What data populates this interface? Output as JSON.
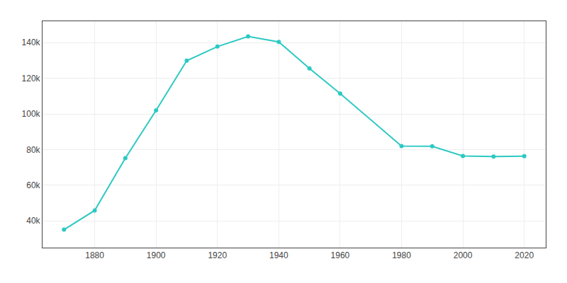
{
  "chart_data": {
    "type": "line",
    "x": [
      1870,
      1880,
      1890,
      1900,
      1910,
      1920,
      1930,
      1940,
      1950,
      1960,
      1980,
      1990,
      2000,
      2010,
      2020
    ],
    "values": [
      35092,
      45850,
      75215,
      102026,
      129867,
      137783,
      143433,
      140404,
      125536,
      111443,
      81993,
      81805,
      76415,
      76089,
      76328
    ],
    "color": "#2dc9c3",
    "marker": "circle",
    "xlim": [
      1863,
      2027
    ],
    "ylim": [
      25000,
      152000
    ],
    "xticks": [
      1880,
      1900,
      1920,
      1940,
      1960,
      1980,
      2000,
      2020
    ],
    "yticks": [
      {
        "value": 40000,
        "label": "40k"
      },
      {
        "value": 60000,
        "label": "60k"
      },
      {
        "value": 80000,
        "label": "80k"
      },
      {
        "value": 100000,
        "label": "100k"
      },
      {
        "value": 120000,
        "label": "120k"
      },
      {
        "value": 140000,
        "label": "140k"
      }
    ],
    "grid": true
  }
}
